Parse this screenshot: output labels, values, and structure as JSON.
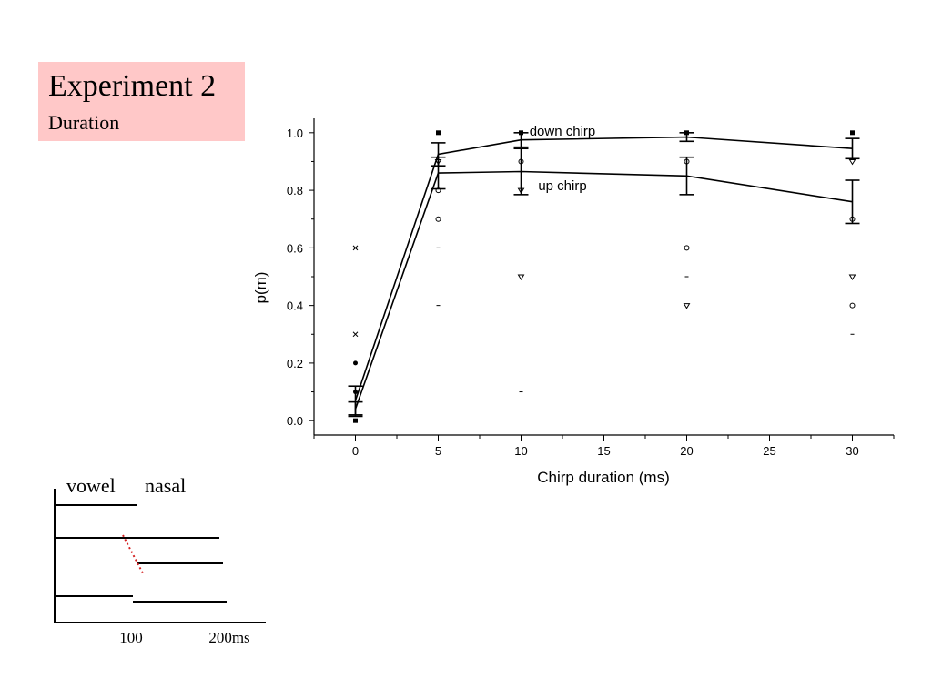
{
  "slide": {
    "title": "Experiment 2",
    "subtitle": "Duration",
    "background_box_color": "#ffc8c8"
  },
  "chart_data": {
    "type": "line",
    "xlabel": "Chirp duration (ms)",
    "ylabel": "p(m)",
    "xlim": [
      -2.5,
      32.5
    ],
    "ylim": [
      -0.05,
      1.05
    ],
    "x_ticks": [
      "0",
      "5",
      "10",
      "15",
      "20",
      "25",
      "30"
    ],
    "y_ticks": [
      "0.0",
      "0.2",
      "0.4",
      "0.6",
      "0.8",
      "1.0"
    ],
    "grid": false,
    "series": [
      {
        "name": "down chirp",
        "x": [
          0,
          5,
          10,
          20,
          30
        ],
        "y": [
          0.07,
          0.925,
          0.975,
          0.985,
          0.945
        ],
        "error": [
          0.05,
          0.04,
          0.025,
          0.015,
          0.035
        ]
      },
      {
        "name": "up chirp",
        "x": [
          0,
          5,
          10,
          20,
          30
        ],
        "y": [
          0.04,
          0.86,
          0.865,
          0.85,
          0.76
        ],
        "error": [
          0.025,
          0.055,
          0.08,
          0.065,
          0.075
        ]
      }
    ],
    "scatter_points": [
      {
        "x": 0,
        "y": 0.6,
        "marker": "cross"
      },
      {
        "x": 0,
        "y": 0.3,
        "marker": "cross"
      },
      {
        "x": 0,
        "y": 0.2,
        "marker": "dot"
      },
      {
        "x": 0,
        "y": 0.1,
        "marker": "dot"
      },
      {
        "x": 0,
        "y": 0.0,
        "marker": "square"
      },
      {
        "x": 5,
        "y": 1.0,
        "marker": "square"
      },
      {
        "x": 5,
        "y": 0.9,
        "marker": "triangle"
      },
      {
        "x": 5,
        "y": 0.8,
        "marker": "circle"
      },
      {
        "x": 5,
        "y": 0.7,
        "marker": "circle"
      },
      {
        "x": 5,
        "y": 0.6,
        "marker": "dash"
      },
      {
        "x": 5,
        "y": 0.4,
        "marker": "dash"
      },
      {
        "x": 10,
        "y": 1.0,
        "marker": "square"
      },
      {
        "x": 10,
        "y": 0.9,
        "marker": "circle"
      },
      {
        "x": 10,
        "y": 0.8,
        "marker": "triangle"
      },
      {
        "x": 10,
        "y": 0.5,
        "marker": "triangle"
      },
      {
        "x": 10,
        "y": 0.1,
        "marker": "dash"
      },
      {
        "x": 20,
        "y": 1.0,
        "marker": "square"
      },
      {
        "x": 20,
        "y": 0.9,
        "marker": "circle"
      },
      {
        "x": 20,
        "y": 0.6,
        "marker": "circle"
      },
      {
        "x": 20,
        "y": 0.5,
        "marker": "dash"
      },
      {
        "x": 20,
        "y": 0.4,
        "marker": "triangle"
      },
      {
        "x": 30,
        "y": 1.0,
        "marker": "square"
      },
      {
        "x": 30,
        "y": 0.9,
        "marker": "triangle"
      },
      {
        "x": 30,
        "y": 0.7,
        "marker": "circle"
      },
      {
        "x": 30,
        "y": 0.5,
        "marker": "triangle"
      },
      {
        "x": 30,
        "y": 0.4,
        "marker": "circle"
      },
      {
        "x": 30,
        "y": 0.3,
        "marker": "dash"
      }
    ]
  },
  "diagram": {
    "label_vowel": "vowel",
    "label_nasal": "nasal",
    "tick_100": "100",
    "tick_200": "200ms",
    "chirp_color": "#d42020"
  }
}
